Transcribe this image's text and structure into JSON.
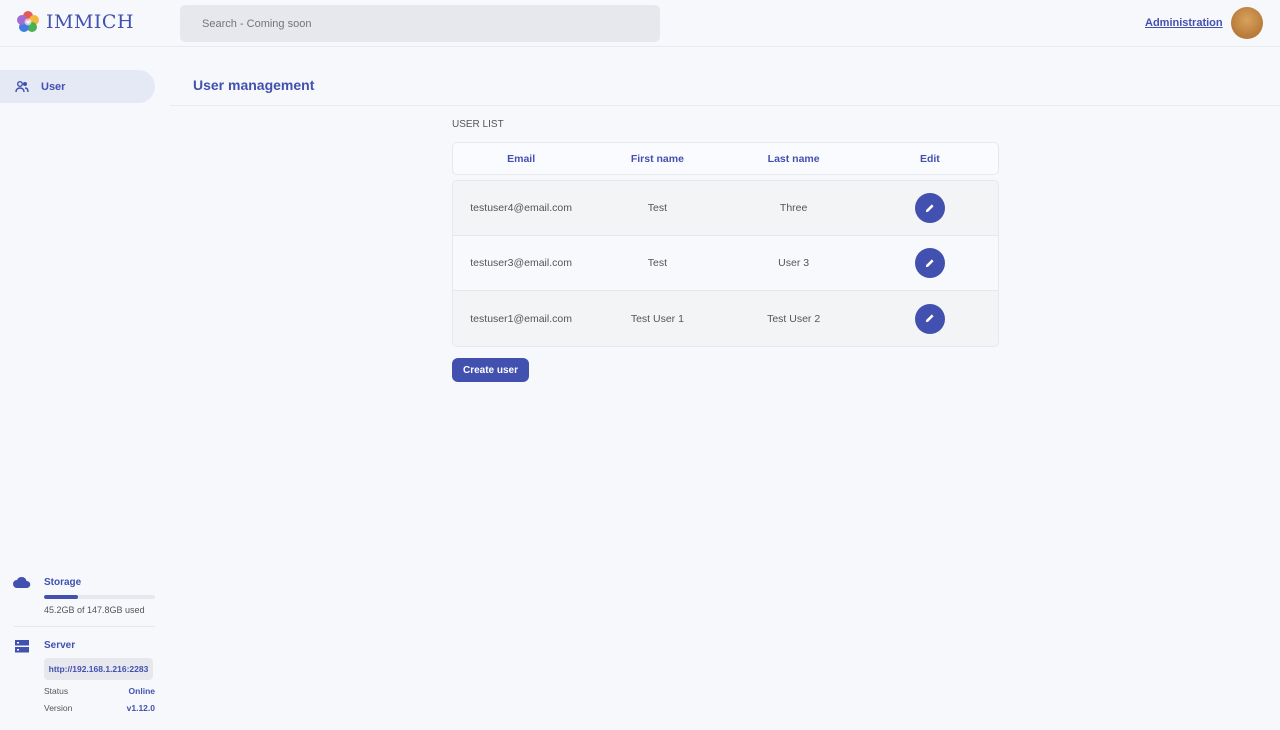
{
  "header": {
    "logo_text": "IMMICH",
    "search_placeholder": "Search - Coming soon",
    "admin_link": "Administration"
  },
  "sidebar": {
    "items": [
      {
        "label": "User",
        "icon": "users-icon",
        "active": true
      }
    ]
  },
  "main": {
    "title": "User management",
    "list_label": "USER LIST",
    "columns": [
      "Email",
      "First name",
      "Last name",
      "Edit"
    ],
    "rows": [
      {
        "email": "testuser4@email.com",
        "first": "Test",
        "last": "Three"
      },
      {
        "email": "testuser3@email.com",
        "first": "Test",
        "last": "User 3"
      },
      {
        "email": "testuser1@email.com",
        "first": "Test User 1",
        "last": "Test User 2"
      }
    ],
    "create_label": "Create user"
  },
  "storage": {
    "label": "Storage",
    "usage_text": "45.2GB of 147.8GB used",
    "used_fraction": 0.306
  },
  "server": {
    "label": "Server",
    "url": "http://192.168.1.216:2283",
    "status_label": "Status",
    "status": "Online",
    "version_label": "Version",
    "version": "v1.12.0"
  },
  "colors": {
    "accent": "#4250af",
    "background": "#f6f8fc"
  }
}
